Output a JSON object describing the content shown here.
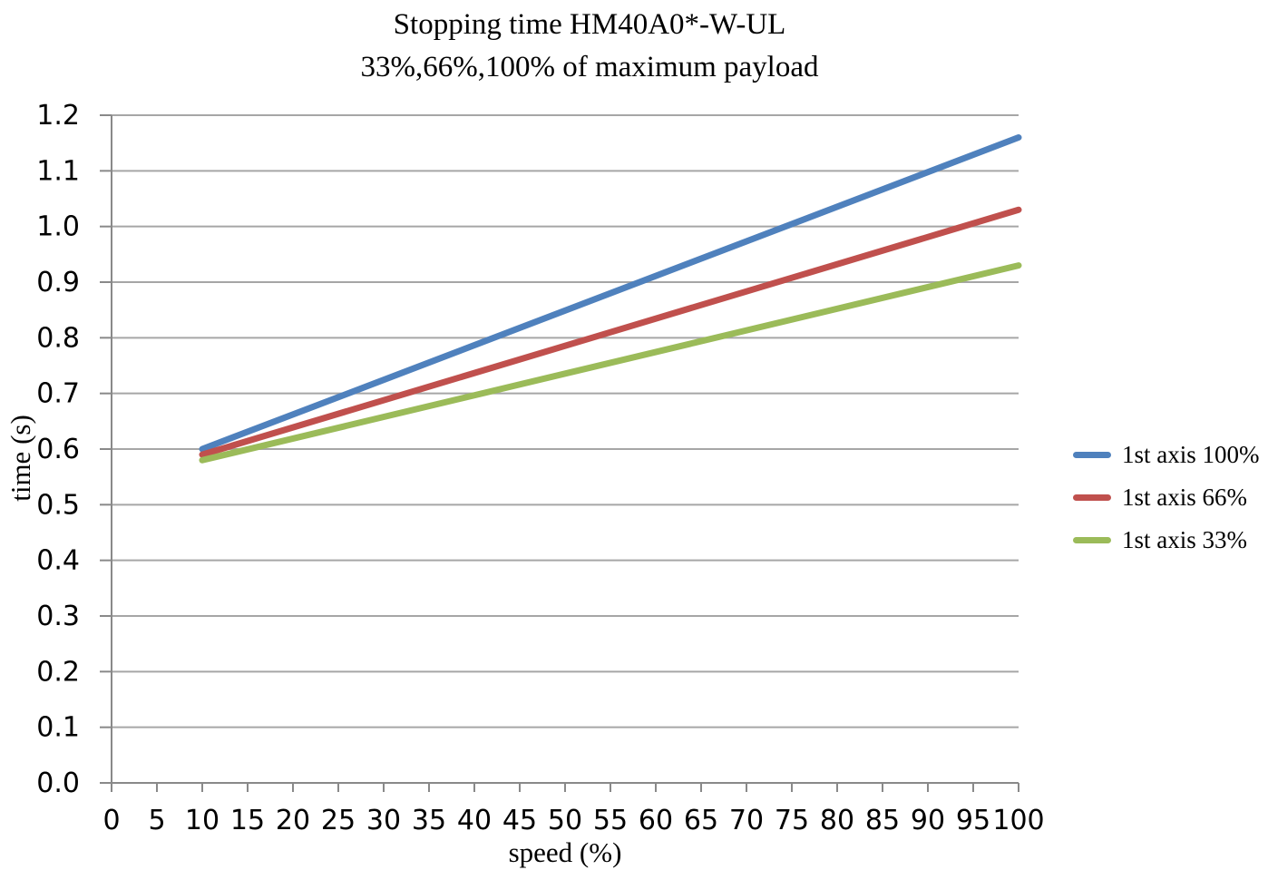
{
  "chart_data": {
    "type": "line",
    "title": "Stopping time HM40A0*-W-UL",
    "subtitle": "33%,66%,100% of maximum payload",
    "xlabel": "speed (%)",
    "ylabel": "time (s)",
    "xlim": [
      0,
      100
    ],
    "ylim": [
      0.0,
      1.2
    ],
    "xticks": [
      0,
      5,
      10,
      15,
      20,
      25,
      30,
      35,
      40,
      45,
      50,
      55,
      60,
      65,
      70,
      75,
      80,
      85,
      90,
      95,
      100
    ],
    "yticks": [
      "0.0",
      "0.1",
      "0.2",
      "0.3",
      "0.4",
      "0.5",
      "0.6",
      "0.7",
      "0.8",
      "0.9",
      "1.0",
      "1.1",
      "1.2"
    ],
    "grid": "horizontal-only",
    "legend_position": "right",
    "gridline_color": "#A6A6A6",
    "axis_color": "#898989",
    "text_color": "#000000",
    "background_color": "#FFFFFF",
    "series": [
      {
        "name": "1st axis 100%",
        "color": "#4F81BD",
        "x": [
          10,
          100
        ],
        "values": [
          0.6,
          1.16
        ]
      },
      {
        "name": "1st axis 66%",
        "color": "#C0504D",
        "x": [
          10,
          100
        ],
        "values": [
          0.59,
          1.03
        ]
      },
      {
        "name": "1st axis 33%",
        "color": "#9BBB59",
        "x": [
          10,
          100
        ],
        "values": [
          0.58,
          0.93
        ]
      }
    ]
  }
}
